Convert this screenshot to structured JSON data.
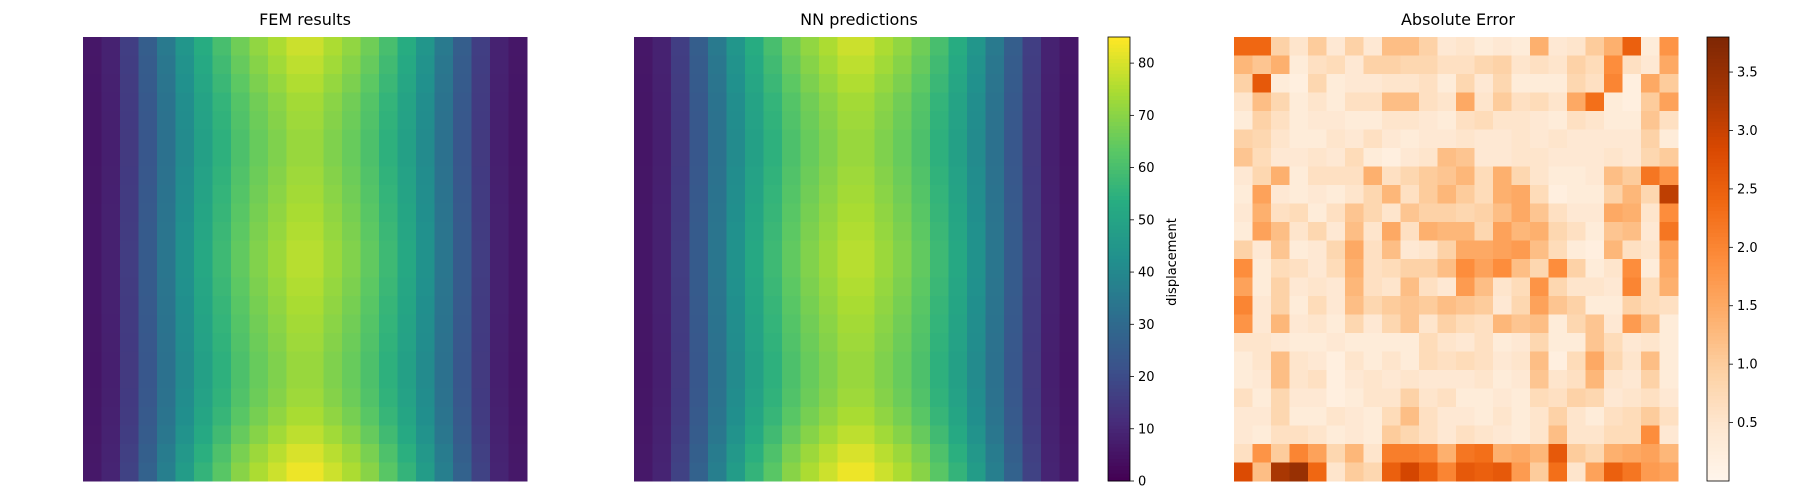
{
  "chart_data": [
    {
      "type": "heatmap",
      "title": "FEM results",
      "rows": 24,
      "cols": 24,
      "colormap": "viridis",
      "vmin": 0,
      "vmax": 85,
      "column_profile": [
        6,
        9,
        17,
        27,
        37,
        47,
        56,
        63,
        70,
        75,
        79,
        83,
        83,
        79,
        75,
        70,
        63,
        56,
        47,
        37,
        27,
        17,
        9,
        6
      ],
      "row_factor": [
        0.95,
        0.93,
        0.91,
        0.89,
        0.88,
        0.87,
        0.87,
        0.88,
        0.89,
        0.9,
        0.91,
        0.92,
        0.92,
        0.91,
        0.9,
        0.89,
        0.88,
        0.87,
        0.87,
        0.88,
        0.9,
        0.93,
        0.97,
        1.0
      ],
      "colorbar": false
    },
    {
      "type": "heatmap",
      "title": "NN predictions",
      "rows": 24,
      "cols": 24,
      "colormap": "viridis",
      "vmin": 0,
      "vmax": 85,
      "column_profile": [
        6,
        9,
        17,
        27,
        37,
        47,
        56,
        63,
        70,
        75,
        79,
        83,
        83,
        79,
        75,
        70,
        63,
        56,
        47,
        37,
        27,
        17,
        9,
        6
      ],
      "row_factor": [
        0.95,
        0.93,
        0.91,
        0.89,
        0.88,
        0.87,
        0.87,
        0.88,
        0.89,
        0.9,
        0.91,
        0.92,
        0.92,
        0.91,
        0.9,
        0.89,
        0.88,
        0.87,
        0.87,
        0.88,
        0.9,
        0.93,
        0.97,
        1.0
      ],
      "colorbar": true,
      "colorbar_label": "displacement",
      "colorbar_ticks": [
        0,
        10,
        20,
        30,
        40,
        50,
        60,
        70,
        80
      ]
    },
    {
      "type": "heatmap",
      "title": "Absolute Error",
      "rows": 24,
      "cols": 24,
      "colormap": "oranges",
      "vmin": 0.0,
      "vmax": 3.8,
      "colorbar": true,
      "colorbar_ticks": [
        "0.5",
        "1.0",
        "1.5",
        "2.0",
        "2.5",
        "3.0",
        "3.5"
      ],
      "values": [
        [
          2.4,
          2.4,
          0.9,
          0.5,
          1.0,
          0.4,
          0.9,
          0.4,
          1.2,
          1.2,
          0.9,
          0.4,
          0.5,
          0.3,
          0.4,
          0.3,
          1.4,
          0.4,
          0.5,
          1.0,
          1.4,
          2.5,
          0.3,
          1.8
        ],
        [
          1.3,
          1.1,
          1.4,
          0.3,
          0.6,
          0.7,
          0.4,
          0.9,
          0.9,
          0.8,
          0.8,
          0.6,
          0.6,
          0.8,
          0.9,
          0.5,
          0.6,
          0.5,
          0.9,
          0.7,
          1.9,
          0.6,
          0.4,
          1.5
        ],
        [
          0.9,
          2.6,
          0.3,
          0.2,
          0.8,
          0.3,
          0.4,
          0.4,
          0.5,
          0.5,
          0.6,
          0.3,
          0.8,
          0.4,
          0.8,
          0.3,
          0.3,
          0.3,
          0.8,
          0.6,
          2.0,
          0.2,
          1.5,
          1.0
        ],
        [
          0.5,
          1.2,
          0.8,
          0.3,
          0.5,
          0.3,
          0.6,
          0.6,
          1.2,
          1.2,
          0.6,
          0.5,
          1.5,
          0.5,
          1.0,
          0.6,
          0.7,
          0.5,
          1.5,
          2.3,
          0.3,
          0.2,
          1.0,
          1.6
        ],
        [
          0.3,
          0.9,
          0.6,
          0.3,
          0.4,
          0.4,
          0.3,
          0.3,
          0.5,
          0.5,
          0.4,
          0.3,
          0.6,
          0.7,
          0.5,
          0.5,
          0.4,
          0.3,
          0.6,
          0.5,
          0.3,
          0.3,
          1.1,
          0.6
        ],
        [
          0.9,
          0.8,
          0.5,
          0.3,
          0.3,
          0.5,
          0.4,
          0.6,
          0.4,
          0.3,
          0.4,
          0.4,
          0.5,
          0.4,
          0.4,
          0.5,
          0.4,
          0.5,
          0.4,
          0.4,
          0.4,
          0.4,
          0.9,
          0.3
        ],
        [
          1.1,
          0.7,
          0.4,
          0.4,
          0.5,
          0.4,
          0.7,
          0.3,
          0.2,
          0.4,
          0.5,
          1.2,
          1.1,
          0.4,
          0.4,
          0.5,
          0.5,
          0.4,
          0.4,
          0.4,
          0.5,
          0.4,
          0.8,
          1.0
        ],
        [
          0.4,
          0.8,
          1.4,
          0.3,
          0.6,
          0.6,
          0.6,
          1.4,
          0.6,
          0.8,
          1.0,
          1.1,
          1.3,
          0.7,
          1.4,
          0.8,
          0.5,
          0.3,
          0.3,
          0.4,
          1.2,
          1.0,
          2.2,
          1.8
        ],
        [
          0.3,
          1.6,
          0.4,
          0.3,
          0.4,
          0.3,
          0.5,
          0.8,
          1.3,
          0.6,
          1.0,
          1.3,
          1.0,
          0.7,
          1.4,
          1.5,
          0.7,
          0.2,
          0.3,
          0.3,
          0.9,
          1.3,
          0.8,
          3.1
        ],
        [
          0.4,
          1.4,
          0.6,
          0.7,
          0.3,
          0.6,
          1.1,
          0.8,
          0.5,
          1.1,
          0.9,
          0.9,
          0.8,
          0.9,
          1.2,
          1.5,
          1.1,
          0.6,
          0.4,
          0.4,
          1.5,
          1.4,
          0.5,
          1.9
        ],
        [
          0.3,
          1.6,
          1.2,
          0.5,
          0.8,
          0.4,
          1.2,
          0.5,
          1.5,
          0.6,
          1.4,
          1.3,
          1.3,
          0.8,
          1.6,
          1.3,
          1.4,
          0.8,
          0.6,
          0.3,
          1.1,
          1.2,
          0.4,
          2.2
        ],
        [
          0.9,
          0.4,
          1.1,
          0.3,
          0.4,
          0.8,
          1.5,
          0.6,
          1.2,
          0.4,
          0.5,
          0.9,
          1.5,
          1.5,
          1.6,
          1.7,
          1.2,
          0.7,
          0.3,
          0.2,
          1.3,
          0.6,
          0.5,
          1.6
        ],
        [
          1.9,
          0.3,
          0.7,
          0.6,
          0.4,
          0.7,
          1.4,
          0.6,
          0.7,
          0.9,
          0.9,
          1.2,
          1.9,
          1.6,
          1.9,
          1.2,
          0.8,
          1.9,
          0.9,
          0.3,
          0.5,
          1.9,
          0.3,
          1.5
        ],
        [
          1.6,
          0.3,
          0.9,
          0.4,
          0.5,
          0.4,
          1.3,
          0.6,
          0.5,
          1.2,
          0.6,
          0.4,
          1.7,
          1.2,
          0.5,
          0.7,
          1.8,
          0.8,
          0.5,
          0.5,
          0.4,
          2.0,
          0.7,
          1.4
        ],
        [
          2.0,
          0.4,
          0.9,
          0.3,
          0.7,
          0.4,
          1.2,
          0.8,
          1.0,
          1.1,
          1.0,
          1.2,
          1.1,
          1.0,
          0.4,
          0.8,
          1.6,
          1.1,
          0.9,
          0.3,
          0.3,
          0.9,
          0.7,
          0.6
        ],
        [
          1.8,
          0.4,
          1.3,
          0.4,
          0.5,
          0.3,
          0.8,
          0.4,
          0.8,
          1.1,
          0.5,
          0.9,
          0.7,
          0.6,
          1.3,
          1.1,
          1.2,
          0.3,
          0.8,
          1.1,
          0.4,
          1.7,
          1.2,
          0.3
        ],
        [
          0.5,
          0.5,
          0.4,
          0.3,
          0.3,
          0.4,
          0.3,
          0.3,
          0.3,
          0.3,
          0.7,
          0.5,
          0.4,
          0.6,
          0.3,
          0.4,
          0.8,
          0.3,
          0.3,
          1.1,
          0.7,
          0.4,
          0.5,
          0.3
        ],
        [
          0.3,
          0.5,
          1.2,
          0.5,
          0.4,
          0.2,
          0.5,
          0.3,
          0.5,
          0.3,
          0.7,
          0.6,
          0.7,
          0.6,
          0.4,
          0.5,
          1.2,
          0.2,
          0.7,
          1.5,
          0.8,
          0.5,
          1.2,
          0.3
        ],
        [
          0.3,
          0.4,
          1.2,
          0.5,
          0.6,
          0.2,
          0.4,
          0.5,
          0.4,
          0.5,
          0.4,
          0.4,
          0.4,
          0.5,
          0.3,
          0.4,
          1.1,
          0.5,
          0.6,
          1.3,
          0.5,
          0.4,
          0.9,
          0.3
        ],
        [
          0.6,
          0.3,
          0.8,
          0.4,
          0.4,
          0.2,
          0.3,
          0.5,
          0.5,
          0.9,
          0.5,
          0.6,
          0.3,
          0.3,
          0.4,
          0.3,
          0.7,
          0.6,
          0.9,
          0.8,
          0.4,
          0.5,
          0.6,
          0.4
        ],
        [
          0.4,
          0.4,
          0.8,
          0.3,
          0.3,
          0.5,
          0.4,
          0.3,
          0.7,
          1.2,
          0.6,
          0.4,
          0.4,
          0.3,
          0.5,
          0.3,
          0.5,
          0.9,
          0.5,
          0.3,
          0.6,
          0.7,
          1.0,
          0.6
        ],
        [
          0.4,
          0.3,
          0.6,
          0.6,
          0.5,
          0.3,
          0.4,
          0.3,
          1.0,
          0.8,
          0.6,
          0.4,
          0.6,
          0.5,
          0.4,
          0.3,
          0.5,
          1.2,
          0.5,
          0.5,
          0.7,
          0.7,
          1.9,
          0.4
        ],
        [
          0.6,
          1.8,
          1.0,
          2.0,
          1.6,
          0.8,
          1.3,
          0.5,
          2.1,
          2.1,
          2.0,
          1.4,
          2.2,
          2.3,
          1.4,
          1.5,
          1.3,
          2.6,
          1.0,
          0.8,
          1.4,
          1.5,
          1.6,
          1.3
        ],
        [
          2.8,
          1.2,
          3.3,
          3.5,
          2.4,
          0.5,
          1.0,
          0.8,
          2.5,
          2.9,
          2.5,
          2.0,
          2.6,
          2.5,
          2.6,
          1.7,
          1.0,
          2.3,
          0.5,
          1.6,
          2.5,
          2.2,
          1.7,
          1.6
        ]
      ]
    }
  ]
}
